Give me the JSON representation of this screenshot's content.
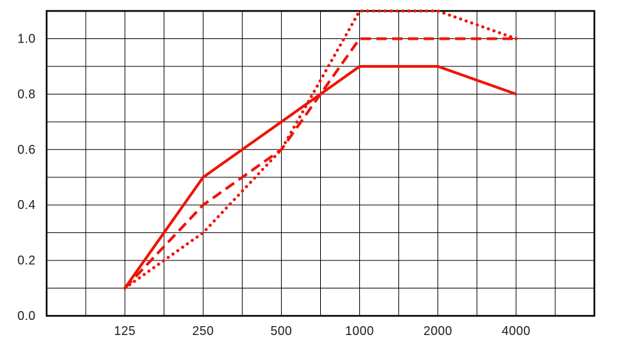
{
  "chart_data": {
    "type": "line",
    "title": "",
    "xlabel": "",
    "ylabel": "",
    "categories": [
      125,
      250,
      500,
      1000,
      2000,
      4000
    ],
    "x_tick_labels": [
      "125",
      "250",
      "500",
      "1000",
      "2000",
      "4000"
    ],
    "y_tick_values": [
      0.0,
      0.2,
      0.4,
      0.6,
      0.8,
      1.0
    ],
    "y_tick_labels": [
      "0.0",
      "0.2",
      "0.4",
      "0.6",
      "0.8",
      "1.0"
    ],
    "ylim": [
      0.0,
      1.1
    ],
    "y_grid_step": 0.1,
    "x_grid": "half-octave",
    "grid": true,
    "legend": "none",
    "grid_color": "#000000",
    "axis_text_color": "#1a1a1a",
    "background": "#ffffff",
    "series": [
      {
        "name": "solid",
        "line_style": "solid",
        "color": "#ee1408",
        "values": [
          0.1,
          0.5,
          0.7,
          0.9,
          0.9,
          0.8
        ]
      },
      {
        "name": "dashed",
        "line_style": "dashed",
        "color": "#ee1408",
        "values": [
          0.1,
          0.4,
          0.6,
          1.0,
          1.0,
          1.0
        ]
      },
      {
        "name": "dotted",
        "line_style": "dotted",
        "color": "#ee1408",
        "values": [
          0.1,
          0.3,
          0.6,
          1.1,
          1.1,
          1.0
        ]
      }
    ]
  }
}
